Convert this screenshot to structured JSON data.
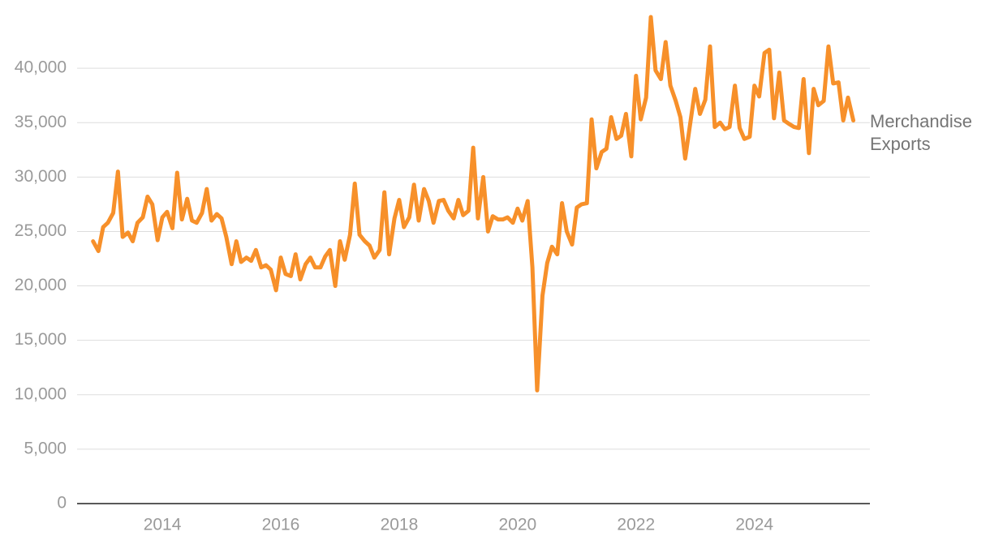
{
  "chart_data": {
    "type": "line",
    "x": [
      2012.83,
      2012.92,
      2013.0,
      2013.08,
      2013.17,
      2013.25,
      2013.33,
      2013.42,
      2013.5,
      2013.58,
      2013.67,
      2013.75,
      2013.83,
      2013.92,
      2014.0,
      2014.08,
      2014.17,
      2014.25,
      2014.33,
      2014.42,
      2014.5,
      2014.58,
      2014.67,
      2014.75,
      2014.83,
      2014.92,
      2015.0,
      2015.08,
      2015.17,
      2015.25,
      2015.33,
      2015.42,
      2015.5,
      2015.58,
      2015.67,
      2015.75,
      2015.83,
      2015.92,
      2016.0,
      2016.08,
      2016.17,
      2016.25,
      2016.33,
      2016.42,
      2016.5,
      2016.58,
      2016.67,
      2016.75,
      2016.83,
      2016.92,
      2017.0,
      2017.08,
      2017.17,
      2017.25,
      2017.33,
      2017.42,
      2017.5,
      2017.58,
      2017.67,
      2017.75,
      2017.83,
      2017.92,
      2018.0,
      2018.08,
      2018.17,
      2018.25,
      2018.33,
      2018.42,
      2018.5,
      2018.58,
      2018.67,
      2018.75,
      2018.83,
      2018.92,
      2019.0,
      2019.08,
      2019.17,
      2019.25,
      2019.33,
      2019.42,
      2019.5,
      2019.58,
      2019.67,
      2019.75,
      2019.83,
      2019.92,
      2020.0,
      2020.08,
      2020.17,
      2020.25,
      2020.33,
      2020.42,
      2020.5,
      2020.58,
      2020.67,
      2020.75,
      2020.83,
      2020.92,
      2021.0,
      2021.08,
      2021.17,
      2021.25,
      2021.33,
      2021.42,
      2021.5,
      2021.58,
      2021.67,
      2021.75,
      2021.83,
      2021.92,
      2022.0,
      2022.08,
      2022.17,
      2022.25,
      2022.33,
      2022.42,
      2022.5,
      2022.58,
      2022.67,
      2022.75,
      2022.83,
      2022.92,
      2023.0,
      2023.08,
      2023.17,
      2023.25,
      2023.33,
      2023.42,
      2023.5,
      2023.58,
      2023.67,
      2023.75,
      2023.83,
      2023.92,
      2024.0,
      2024.08,
      2024.17,
      2024.25,
      2024.33,
      2024.42,
      2024.5,
      2024.58,
      2024.67,
      2024.75,
      2024.83,
      2024.92,
      2025.0,
      2025.08,
      2025.17,
      2025.25,
      2025.33,
      2025.42,
      2025.5,
      2025.58,
      2025.67
    ],
    "series": [
      {
        "name": "Merchandise Exports",
        "color": "#f7902a",
        "values": [
          24100,
          23200,
          25400,
          25800,
          26700,
          30500,
          24500,
          24900,
          24100,
          25800,
          26300,
          28200,
          27500,
          24200,
          26300,
          26800,
          25300,
          30400,
          26100,
          28000,
          26000,
          25800,
          26700,
          28900,
          26000,
          26600,
          26200,
          24500,
          22000,
          24100,
          22200,
          22600,
          22300,
          23300,
          21700,
          21900,
          21500,
          19600,
          22600,
          21100,
          20900,
          22900,
          20600,
          22000,
          22600,
          21700,
          21700,
          22700,
          23300,
          20000,
          24100,
          22400,
          24700,
          29400,
          24700,
          24100,
          23700,
          22600,
          23300,
          28600,
          22900,
          26200,
          27900,
          25400,
          26300,
          29300,
          26000,
          28900,
          27800,
          25800,
          27800,
          27900,
          26900,
          26200,
          27900,
          26500,
          26900,
          32700,
          26200,
          30000,
          25000,
          26400,
          26100,
          26100,
          26300,
          25800,
          27100,
          26000,
          27800,
          21700,
          10400,
          19100,
          22100,
          23600,
          22900,
          27600,
          25000,
          23800,
          27200,
          27500,
          27600,
          35300,
          30800,
          32300,
          32600,
          35500,
          33500,
          33800,
          35800,
          31900,
          39300,
          35300,
          37300,
          44700,
          39800,
          39000,
          42400,
          38400,
          37000,
          35500,
          31700,
          35100,
          38100,
          35800,
          37100,
          42000,
          34600,
          35000,
          34400,
          34600,
          38400,
          34500,
          33500,
          33700,
          38400,
          37400,
          41400,
          41700,
          35400,
          39600,
          35200,
          34900,
          34600,
          34500,
          39000,
          32200,
          38100,
          36600,
          37000,
          42000,
          38600,
          38700,
          35200,
          37300,
          35200
        ]
      }
    ],
    "xlim": [
      2012.56,
      2025.95
    ],
    "xticks": [
      2014,
      2016,
      2018,
      2020,
      2022,
      2024
    ],
    "ylim": [
      0,
      45000
    ],
    "yticks": [
      0,
      {
        "value": 5000,
        "label": "5,000"
      },
      {
        "value": 10000,
        "label": "10,000"
      },
      {
        "value": 15000,
        "label": "15,000"
      },
      {
        "value": 20000,
        "label": "20,000"
      },
      {
        "value": 25000,
        "label": "25,000"
      },
      {
        "value": 30000,
        "label": "30,000"
      },
      {
        "value": 35000,
        "label": "35,000"
      },
      {
        "value": 40000,
        "label": "40,000"
      }
    ],
    "grid": true
  }
}
